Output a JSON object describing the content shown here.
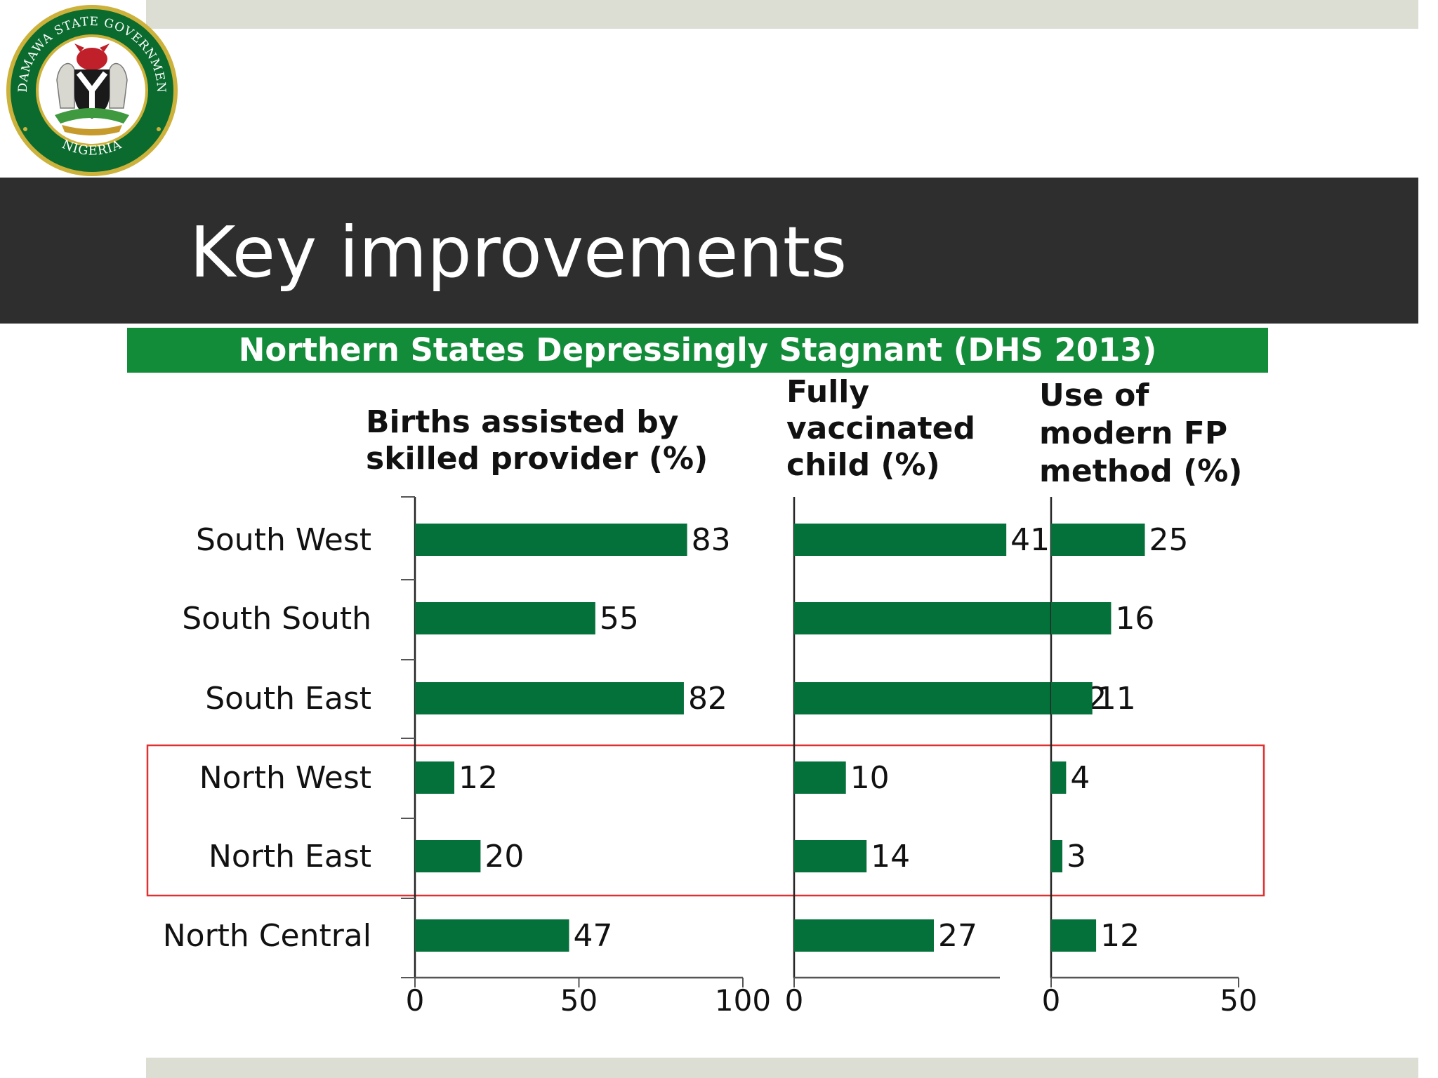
{
  "slide": {
    "title": "Key improvements",
    "banner": "Northern States Depressingly Stagnant (DHS 2013)",
    "logo": {
      "text_top": "ADAMAWA STATE GOVERNMENT",
      "text_bottom": "NIGERIA"
    }
  },
  "colors": {
    "bar": "#04703a",
    "banner": "#138c3a",
    "title_bar": "#2e2e2e",
    "highlight": "#e03030"
  },
  "chart_data": {
    "type": "bar",
    "orientation": "horizontal",
    "categories": [
      "South West",
      "South South",
      "South East",
      "North West",
      "North East",
      "North Central"
    ],
    "panels": [
      {
        "title_lines": [
          "Births assisted by",
          "skilled provider (%)"
        ],
        "values": [
          83,
          55,
          82,
          12,
          20,
          47
        ],
        "xlim": [
          0,
          100
        ],
        "ticks": [
          "0",
          "50",
          "100"
        ],
        "tick_values": [
          0,
          50,
          100
        ]
      },
      {
        "title_lines": [
          "Fully",
          "vaccinated",
          "child (%)"
        ],
        "values": [
          41,
          52,
          52,
          10,
          14,
          27
        ],
        "xlim": [
          0,
          60
        ],
        "ticks": [
          "0"
        ],
        "tick_values": [
          0
        ]
      },
      {
        "title_lines": [
          "Use of",
          "modern FP",
          "method (%)"
        ],
        "values": [
          25,
          16,
          11,
          4,
          3,
          12
        ],
        "xlim": [
          0,
          50
        ],
        "ticks": [
          "0",
          "50"
        ],
        "tick_values": [
          0,
          50
        ]
      }
    ],
    "highlight_categories": [
      "North West",
      "North East"
    ],
    "legend": "none",
    "grid": false
  }
}
